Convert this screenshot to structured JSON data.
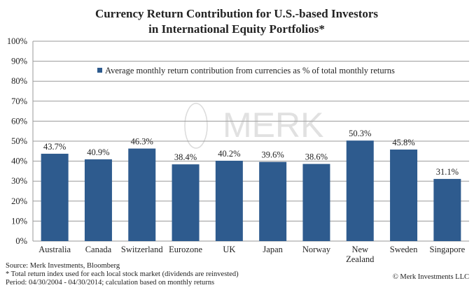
{
  "chart_data": {
    "type": "bar",
    "title": [
      "Currency Return Contribution for U.S.-based Investors",
      "in International Equity Portfolios*"
    ],
    "categories": [
      [
        "Australia"
      ],
      [
        "Canada"
      ],
      [
        "Switzerland"
      ],
      [
        "Eurozone"
      ],
      [
        "UK"
      ],
      [
        "Japan"
      ],
      [
        "Norway"
      ],
      [
        "New",
        "Zealand"
      ],
      [
        "Sweden"
      ],
      [
        "Singapore"
      ]
    ],
    "series": [
      {
        "name": "Average monthly return contribution from currencies as % of total monthly returns",
        "values": [
          43.7,
          40.9,
          46.3,
          38.4,
          40.2,
          39.6,
          38.6,
          50.3,
          45.8,
          31.1
        ],
        "labels": [
          "43.7%",
          "40.9%",
          "46.3%",
          "38.4%",
          "40.2%",
          "39.6%",
          "38.6%",
          "50.3%",
          "45.8%",
          "31.1%"
        ]
      }
    ],
    "ylim": [
      0,
      100
    ],
    "yticks": [
      "0%",
      "10%",
      "20%",
      "30%",
      "40%",
      "50%",
      "60%",
      "70%",
      "80%",
      "90%",
      "100%"
    ],
    "grid": true,
    "legend_placement": "top-center",
    "xlabel": "",
    "ylabel": "",
    "color": "#2e5b8e",
    "watermark": "MERK"
  },
  "footer": {
    "source": "Source: Merk Investments, Bloomberg",
    "note": "* Total return index used for each local stock market (dividends are reinvested)",
    "period": "Period: 04/30/2004 - 04/30/2014; calculation based on monthly returns",
    "copyright": "© Merk Investments LLC"
  }
}
